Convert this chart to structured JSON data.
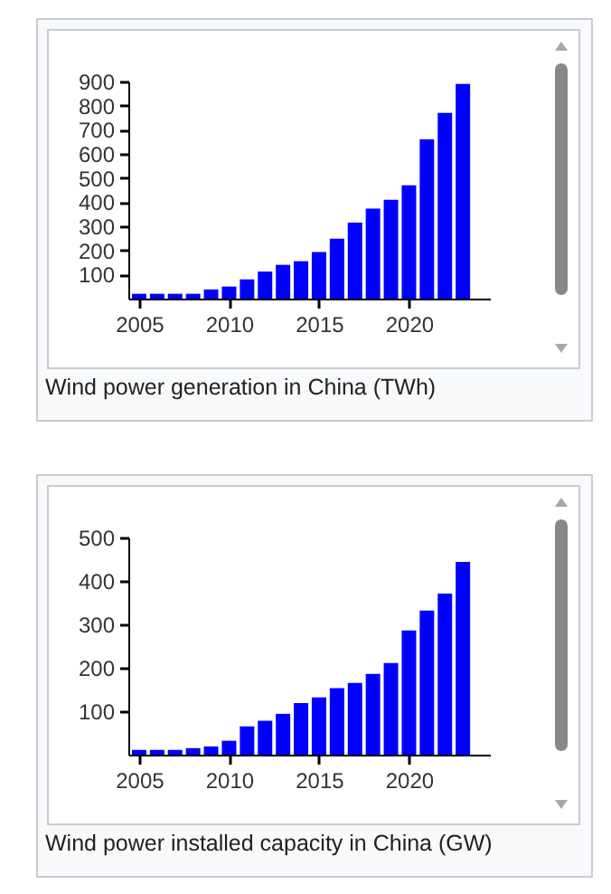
{
  "chart_data": [
    {
      "type": "bar",
      "title": "Wind power generation in China (TWh)",
      "x": [
        2005,
        2006,
        2007,
        2008,
        2009,
        2010,
        2011,
        2012,
        2013,
        2014,
        2015,
        2016,
        2017,
        2018,
        2019,
        2020,
        2021,
        2022,
        2023
      ],
      "values": [
        20,
        20,
        20,
        20,
        38,
        50,
        80,
        112,
        140,
        155,
        193,
        248,
        315,
        373,
        410,
        470,
        660,
        770,
        890
      ],
      "color": "#0000ff",
      "xlim": [
        2004.4,
        2024.5
      ],
      "xticks": [
        2005,
        2010,
        2015,
        2020
      ],
      "ylim": [
        0,
        900
      ],
      "yticks": [
        100,
        200,
        300,
        400,
        500,
        600,
        700,
        800,
        900
      ],
      "grid": false
    },
    {
      "type": "bar",
      "title": "Wind power installed capacity in China (GW)",
      "x": [
        2005,
        2006,
        2007,
        2008,
        2009,
        2010,
        2011,
        2012,
        2013,
        2014,
        2015,
        2016,
        2017,
        2018,
        2019,
        2020,
        2021,
        2022,
        2023
      ],
      "values": [
        11,
        11,
        11,
        15,
        19,
        32,
        65,
        78,
        94,
        119,
        132,
        153,
        165,
        186,
        211,
        286,
        332,
        371,
        444
      ],
      "color": "#0000ff",
      "xlim": [
        2004.4,
        2024.5
      ],
      "xticks": [
        2005,
        2010,
        2015,
        2020
      ],
      "ylim": [
        0,
        500
      ],
      "yticks": [
        100,
        200,
        300,
        400,
        500
      ],
      "grid": false
    }
  ]
}
